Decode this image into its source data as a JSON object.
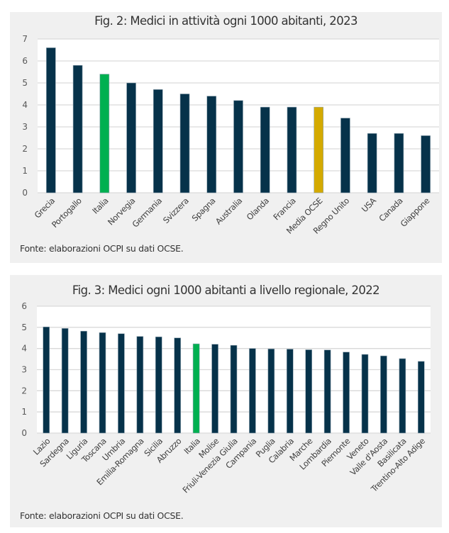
{
  "colors": {
    "default_bar": "#06324a",
    "italy_bar": "#00b050",
    "oecd_bar": "#d4aa00",
    "grid": "#d9d9d9",
    "plot_bg": "#ffffff",
    "panel_bg": "#f0f0f0"
  },
  "chart_data": [
    {
      "type": "bar",
      "title": "Fig. 2: Medici in attività ogni 1000 abitanti, 2023",
      "xlabel": "",
      "ylabel": "",
      "ylim": [
        0,
        7
      ],
      "yticks": [
        0,
        1,
        2,
        3,
        4,
        5,
        6,
        7
      ],
      "grid": true,
      "legend": "none",
      "categories": [
        "Grecia",
        "Portogallo",
        "Italia",
        "Norvegia",
        "Germania",
        "Svizzera",
        "Spagna",
        "Australia",
        "Olanda",
        "Francia",
        "Media OCSE",
        "Regno Unito",
        "USA",
        "Canada",
        "Giappone"
      ],
      "values": [
        6.6,
        5.8,
        5.4,
        5.0,
        4.7,
        4.5,
        4.4,
        4.2,
        3.9,
        3.9,
        3.9,
        3.4,
        2.7,
        2.7,
        2.6
      ],
      "highlight": {
        "Italia": "italy_bar",
        "Media OCSE": "oecd_bar"
      },
      "source": "Fonte: elaborazioni OCPI su dati OCSE."
    },
    {
      "type": "bar",
      "title": "Fig. 3: Medici ogni 1000 abitanti a livello regionale, 2022",
      "xlabel": "",
      "ylabel": "",
      "ylim": [
        0,
        6
      ],
      "yticks": [
        0,
        1,
        2,
        3,
        4,
        5,
        6
      ],
      "grid": true,
      "legend": "none",
      "categories": [
        "Lazio",
        "Sardegna",
        "Liguria",
        "Toscana",
        "Umbria",
        "Emilia-Romagna",
        "Sicilia",
        "Abruzzo",
        "Italia",
        "Molise",
        "Friuli-Venezia Giulia",
        "Campania",
        "Puglia",
        "Calabria",
        "Marche",
        "Lombardia",
        "Piemonte",
        "Veneto",
        "Valle d'Aosta",
        "Basilicata",
        "Trentino-Alto Adige"
      ],
      "values": [
        5.02,
        4.95,
        4.82,
        4.75,
        4.7,
        4.57,
        4.55,
        4.5,
        4.22,
        4.2,
        4.15,
        4.0,
        3.98,
        3.97,
        3.94,
        3.93,
        3.83,
        3.72,
        3.65,
        3.52,
        3.39
      ],
      "highlight": {
        "Italia": "italy_bar"
      },
      "source": "Fonte: elaborazioni OCPI su dati OCSE."
    }
  ]
}
